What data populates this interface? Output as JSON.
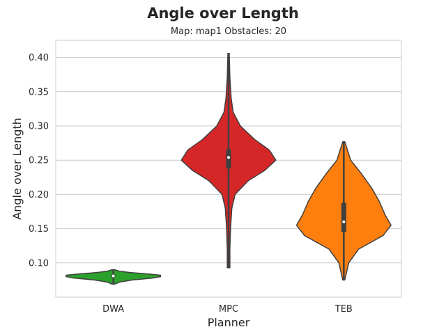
{
  "chart_data": {
    "type": "violin",
    "title": "Angle over Length",
    "subtitle": "Map: map1 Obstacles: 20",
    "xlabel": "Planner",
    "ylabel": "Angle over Length",
    "ylim": [
      0.05,
      0.425
    ],
    "yticks": [
      "0.10",
      "0.15",
      "0.20",
      "0.25",
      "0.30",
      "0.35",
      "0.40"
    ],
    "grid": true,
    "categories": [
      "DWA",
      "MPC",
      "TEB"
    ],
    "colors": [
      "#2ca02c",
      "#d62728",
      "#ff7f0e"
    ],
    "violins": [
      {
        "category": "DWA",
        "min": 0.069,
        "q1": 0.08,
        "median": 0.081,
        "q3": 0.083,
        "max": 0.09,
        "density": [
          [
            0.069,
            0.03
          ],
          [
            0.072,
            0.13
          ],
          [
            0.075,
            0.4
          ],
          [
            0.078,
            0.85
          ],
          [
            0.08,
            1.0
          ],
          [
            0.082,
            1.0
          ],
          [
            0.084,
            0.7
          ],
          [
            0.086,
            0.35
          ],
          [
            0.088,
            0.12
          ],
          [
            0.09,
            0.03
          ]
        ]
      },
      {
        "category": "MPC",
        "min": 0.093,
        "q1": 0.238,
        "median": 0.254,
        "q3": 0.266,
        "max": 0.406,
        "density": [
          [
            0.093,
            0.02
          ],
          [
            0.12,
            0.02
          ],
          [
            0.15,
            0.03
          ],
          [
            0.18,
            0.05
          ],
          [
            0.2,
            0.1
          ],
          [
            0.22,
            0.3
          ],
          [
            0.235,
            0.55
          ],
          [
            0.25,
            0.72
          ],
          [
            0.265,
            0.62
          ],
          [
            0.28,
            0.4
          ],
          [
            0.3,
            0.18
          ],
          [
            0.32,
            0.07
          ],
          [
            0.34,
            0.04
          ],
          [
            0.37,
            0.02
          ],
          [
            0.406,
            0.01
          ]
        ]
      },
      {
        "category": "TEB",
        "min": 0.075,
        "q1": 0.145,
        "median": 0.16,
        "q3": 0.188,
        "max": 0.277,
        "density": [
          [
            0.075,
            0.01
          ],
          [
            0.1,
            0.05
          ],
          [
            0.12,
            0.15
          ],
          [
            0.14,
            0.4
          ],
          [
            0.155,
            0.48
          ],
          [
            0.17,
            0.42
          ],
          [
            0.19,
            0.36
          ],
          [
            0.21,
            0.28
          ],
          [
            0.23,
            0.18
          ],
          [
            0.25,
            0.07
          ],
          [
            0.277,
            0.01
          ]
        ]
      }
    ]
  }
}
